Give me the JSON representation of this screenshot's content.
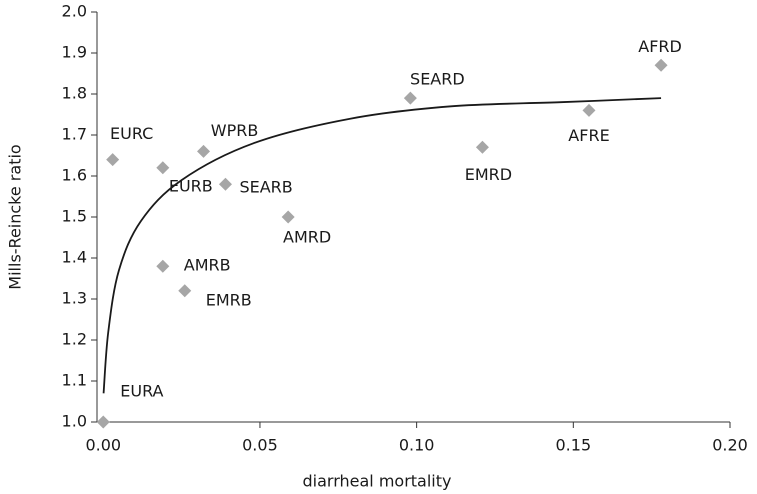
{
  "chart_data": {
    "type": "scatter",
    "xlabel": "diarrheal mortality",
    "ylabel": "Mills-Reincke ratio",
    "x": [
      0.0,
      0.003,
      0.019,
      0.032,
      0.039,
      0.059,
      0.019,
      0.026,
      0.098,
      0.121,
      0.155,
      0.178
    ],
    "values": [
      1.0,
      1.64,
      1.62,
      1.66,
      1.58,
      1.5,
      1.38,
      1.32,
      1.79,
      1.67,
      1.76,
      1.87
    ],
    "point_labels": [
      "EURA",
      "EURC",
      "EURB",
      "WPRB",
      "SEARB",
      "AMRD",
      "AMRB",
      "EMRB",
      "SEARD",
      "EMRD",
      "AFRE",
      "AFRD"
    ],
    "color": "#a6a6a6",
    "trendline": {
      "color": "#1a1a1a",
      "x": [
        0.0001,
        0.0016,
        0.005,
        0.012,
        0.025,
        0.048,
        0.079,
        0.111,
        0.146,
        0.178
      ],
      "values": [
        1.07,
        1.22,
        1.37,
        1.49,
        1.59,
        1.68,
        1.74,
        1.77,
        1.78,
        1.79
      ]
    },
    "xlim": [
      -0.002,
      0.2
    ],
    "ylim": [
      1.0,
      2.0
    ],
    "xticks": [
      {
        "value": 0,
        "label": "0.00"
      },
      {
        "value": 0.05,
        "label": "0.05"
      },
      {
        "value": 0.1,
        "label": "0.10"
      },
      {
        "value": 0.15,
        "label": "0.15"
      },
      {
        "value": 0.2,
        "label": "0.20"
      }
    ],
    "yticks": [
      {
        "value": 1,
        "label": "1.0"
      },
      1.1,
      1.2,
      1.3,
      1.4,
      1.5,
      1.6,
      1.7,
      1.8,
      1.9,
      {
        "value": 2,
        "label": "2.0"
      }
    ],
    "grid": false
  }
}
